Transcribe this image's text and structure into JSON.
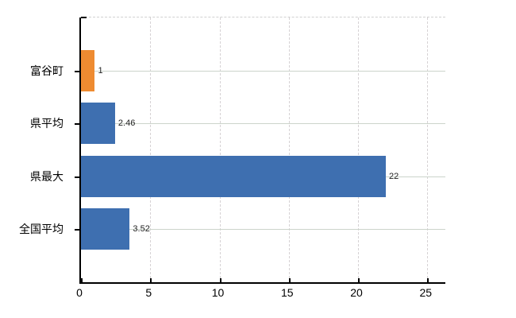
{
  "chart_data": {
    "type": "bar",
    "orientation": "horizontal",
    "title": "",
    "xlabel": "",
    "ylabel": "",
    "legend": "none",
    "categories": [
      "富谷町",
      "県平均",
      "県最大",
      "全国平均"
    ],
    "values": [
      1,
      2.46,
      22,
      3.52
    ],
    "value_labels": [
      "1",
      "2.46",
      "22",
      "3.52"
    ],
    "bar_colors": [
      "#ee8b31",
      "#3e6fb0",
      "#3e6fb0",
      "#3e6fb0"
    ],
    "x_ticks": [
      0,
      5,
      10,
      15,
      20,
      25
    ],
    "xlim": [
      0,
      26.3
    ],
    "grid": {
      "vertical": "dashed",
      "horizontal": "solid",
      "top_border": "dashed"
    }
  },
  "colors": {
    "bar_orange": "#ee8b31",
    "bar_blue": "#3e6fb0",
    "axis": "#000000",
    "grid_vertical": "#d6d2d4",
    "grid_horizontal": "#ccd4cb",
    "top_border": "#d0d0d0",
    "value_label_text": "#222222",
    "tick_label_text": "#000000",
    "background": "#ffffff"
  }
}
